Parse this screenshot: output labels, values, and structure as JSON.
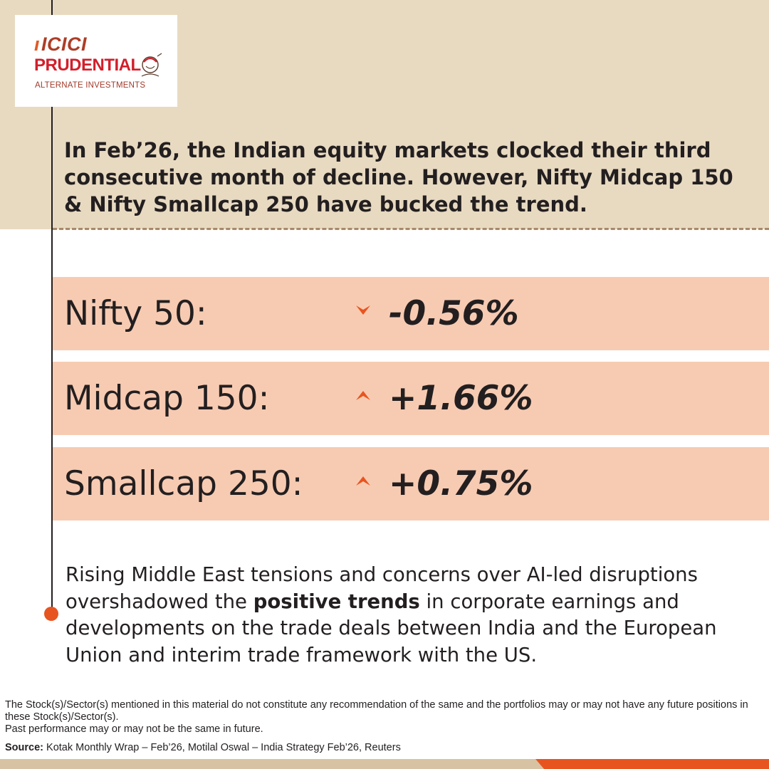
{
  "brand": {
    "logo_line1": "ICICI",
    "logo_line2": "PRUDENTIAL",
    "logo_line3": "ALTERNATE INVESTMENTS"
  },
  "headline": "In Feb’26, the Indian equity markets clocked their third consecutive month of decline. However, Nifty Midcap 150 & Nifty Smallcap 250 have bucked the trend.",
  "metrics": [
    {
      "label": "Nifty 50:",
      "direction": "down",
      "value": "-0.56%"
    },
    {
      "label": "Midcap 150:",
      "direction": "up",
      "value": "+1.66%"
    },
    {
      "label": "Smallcap 250:",
      "direction": "up",
      "value": "+0.75%"
    }
  ],
  "body": {
    "before_bold": "Rising Middle East tensions and concerns over AI-led disruptions overshadowed the ",
    "bold": "positive trends",
    "after_bold": " in corporate earnings and developments on the trade deals between India and the European Union and interim trade framework with the US."
  },
  "disclaimer": {
    "line1": "The Stock(s)/Sector(s) mentioned in this material do not constitute any recommendation of the same and the portfolios may or may not have any future positions in these Stock(s)/Sector(s).",
    "line2": "Past performance may or may not be the same in future."
  },
  "source": {
    "label": "Source:",
    "text": " Kotak Monthly Wrap – Feb’26, Motilal Oswal – India Strategy Feb’26, Reuters"
  },
  "colors": {
    "beige_band": "#e8dac1",
    "metric_row": "#f7cbb2",
    "accent_orange": "#e8541f",
    "text_dark": "#231f20",
    "dashed_rule": "#a8896a"
  },
  "icons": {
    "down": "triangle-down-icon",
    "up": "triangle-up-icon",
    "bullet": "orange-dot-icon"
  }
}
